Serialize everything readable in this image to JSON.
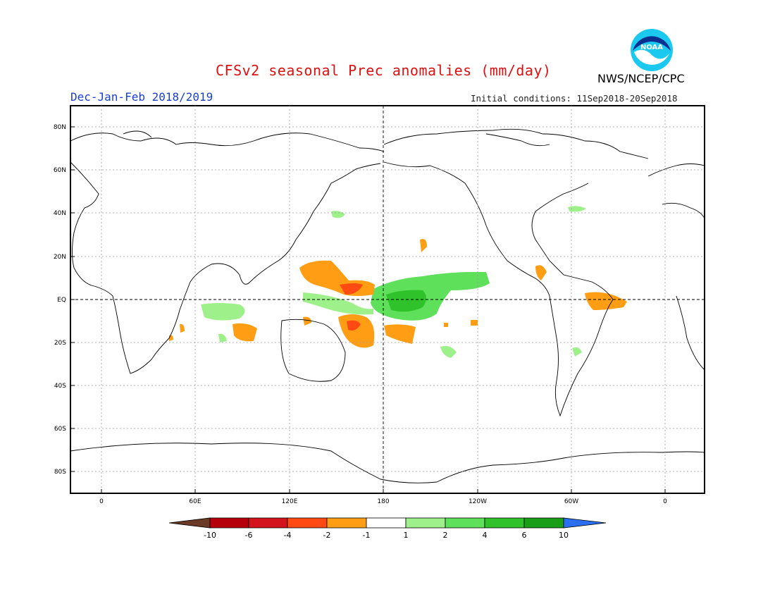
{
  "header": {
    "title": "CFSv2 seasonal Prec anomalies (mm/day)",
    "season": "Dec-Jan-Feb 2018/2019",
    "initial_conditions": "Initial conditions: 11Sep2018-20Sep2018",
    "agency": "NWS/NCEP/CPC",
    "logo_text": "NOAA"
  },
  "axes": {
    "lat_labels": [
      "80N",
      "60N",
      "40N",
      "20N",
      "EQ",
      "20S",
      "40S",
      "60S",
      "80S"
    ],
    "lon_labels": [
      "0",
      "60E",
      "120E",
      "180",
      "120W",
      "60W",
      "0"
    ]
  },
  "legend": {
    "labels": [
      "-10",
      "-6",
      "-4",
      "-2",
      "-1",
      "1",
      "2",
      "4",
      "6",
      "10"
    ],
    "colors": [
      "#6b3a26",
      "#b5000c",
      "#d3141d",
      "#ff4a14",
      "#ff9e14",
      "#ffffff",
      "#9ef08a",
      "#5fe05a",
      "#2fc22a",
      "#1a9e18",
      "#2a6ff0"
    ]
  },
  "colors": {
    "title": "#e01010",
    "season": "#1a3fd6",
    "dry_moderate": "#ff9e14",
    "dry_strong": "#ff4a14",
    "wet_light": "#9ef08a",
    "wet_moderate": "#5fe05a",
    "wet_strong": "#2fc22a"
  }
}
